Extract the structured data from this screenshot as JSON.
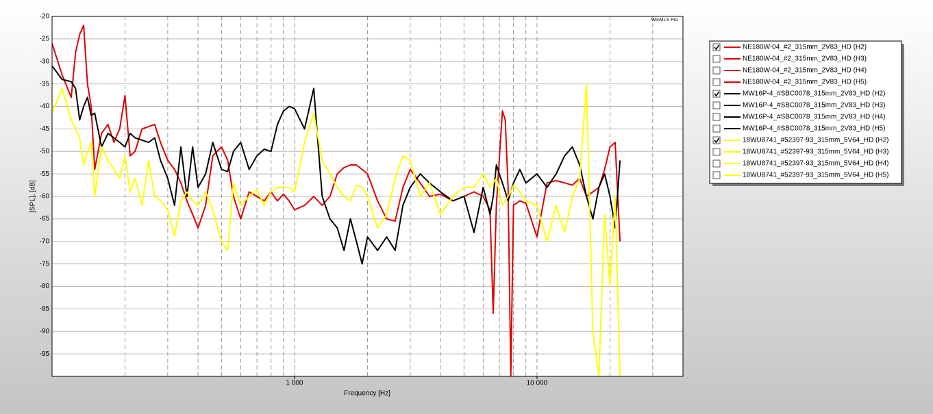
{
  "chart_data": {
    "type": "line",
    "watermark": "WinMLS Pro",
    "xlabel": "Frequency [Hz]",
    "ylabel": "[SPL], [dB]",
    "xlog": true,
    "grid": true,
    "xlim": [
      100,
      40000
    ],
    "ylim": [
      -100,
      -20
    ],
    "xticks": [
      {
        "value": 1000,
        "label": "1 000"
      },
      {
        "value": 10000,
        "label": "10 000"
      }
    ],
    "xminor": [
      200,
      300,
      400,
      500,
      600,
      700,
      800,
      900,
      2000,
      3000,
      4000,
      5000,
      6000,
      7000,
      8000,
      9000,
      20000,
      30000
    ],
    "yticks": [
      -95,
      -90,
      -85,
      -80,
      -75,
      -70,
      -65,
      -60,
      -55,
      -50,
      -45,
      -40,
      -35,
      -30,
      -25,
      -20
    ],
    "legend_position": "right",
    "x": [
      100,
      110,
      120,
      125,
      130,
      135,
      140,
      145,
      150,
      160,
      170,
      180,
      190,
      200,
      210,
      220,
      235,
      250,
      265,
      280,
      300,
      320,
      340,
      360,
      380,
      400,
      430,
      460,
      500,
      530,
      560,
      600,
      650,
      700,
      750,
      800,
      850,
      900,
      950,
      1000,
      1100,
      1200,
      1300,
      1400,
      1500,
      1600,
      1700,
      1800,
      1900,
      2000,
      2200,
      2400,
      2600,
      2800,
      3000,
      3300,
      3600,
      4000,
      4500,
      5000,
      5500,
      6000,
      6400,
      6600,
      6800,
      7200,
      7400,
      7600,
      7800,
      8000,
      8500,
      9000,
      10000,
      11000,
      12000,
      13000,
      14000,
      15000,
      16000,
      17000,
      18000,
      19000,
      20000,
      21000,
      22000
    ],
    "series": [
      {
        "name": "NE180W-04_#2_315mm_2V83_HD (H2)",
        "color": "#e00000",
        "checked": true,
        "values": [
          -26,
          -33,
          -38,
          -28,
          -24,
          -22,
          -35,
          -40,
          -54,
          -46,
          -44,
          -48,
          -45,
          -37.6,
          -51,
          -50,
          -45,
          -44.5,
          -44,
          -48,
          -52,
          -54,
          -57,
          -61,
          -64,
          -67,
          -62,
          -51,
          -49,
          -52,
          -60,
          -65,
          -59,
          -60,
          -61,
          -59,
          -61,
          -59.5,
          -61,
          -63,
          -62,
          -60,
          -62,
          -60,
          -55,
          -53.6,
          -53,
          -53,
          -54,
          -55,
          -61,
          -65,
          -65.5,
          -58,
          -54,
          -57,
          -60,
          -59.5,
          -61,
          -60,
          -59,
          -60,
          -63,
          -86,
          -62,
          -41,
          -43,
          -58,
          -100,
          -62,
          -61,
          -61.5,
          -69,
          -57,
          -56.5,
          -57,
          -57.5,
          -56,
          -60,
          -59,
          -58,
          -54,
          -49,
          -48,
          -70
        ]
      },
      {
        "name": "NE180W-04_#2_315mm_2V83_HD (H3)",
        "color": "#e00000",
        "checked": false
      },
      {
        "name": "NE180W-04_#2_315mm_2V83_HD (H4)",
        "color": "#e00000",
        "checked": false
      },
      {
        "name": "NE180W-04_#2_315mm_2V83_HD (H5)",
        "color": "#e00000",
        "checked": false
      },
      {
        "name": "MW16P-4_#SBC0078_315mm_2V83_HD (H2)",
        "color": "#000000",
        "checked": true,
        "values": [
          -31,
          -34,
          -34.5,
          -36,
          -43,
          -40,
          -38,
          -42,
          -41.5,
          -49,
          -46,
          -47,
          -48,
          -49,
          -46,
          -47,
          -47.5,
          -48,
          -47,
          -52,
          -56,
          -62,
          -49,
          -60,
          -49,
          -58,
          -55,
          -48,
          -54,
          -54.5,
          -50,
          -48,
          -54,
          -51,
          -49.5,
          -50,
          -44,
          -41,
          -40,
          -40.5,
          -45,
          -36,
          -60,
          -65,
          -67,
          -72,
          -65,
          -70,
          -75,
          -69,
          -72,
          -69,
          -72,
          -62,
          -58,
          -55,
          -57,
          -59,
          -61,
          -60,
          -68,
          -58,
          -64,
          -60,
          -53,
          -57,
          -59,
          -61,
          -59,
          -57,
          -54,
          -57,
          -55,
          -58,
          -55,
          -51,
          -49,
          -53,
          -60,
          -65,
          -58,
          -55,
          -60,
          -67,
          -52
        ]
      },
      {
        "name": "MW16P-4_#SBC0078_315mm_2V83_HD (H3)",
        "color": "#000000",
        "checked": false
      },
      {
        "name": "MW16P-4_#SBC0078_315mm_2V83_HD (H4)",
        "color": "#000000",
        "checked": false
      },
      {
        "name": "MW16P-4_#SBC0078_315mm_2V83_HD (H5)",
        "color": "#000000",
        "checked": false
      },
      {
        "name": "18WU8741_#52397-93_315mm_5V64_HD (H2)",
        "color": "#ffff00",
        "checked": true,
        "values": [
          -41.5,
          -36,
          -43,
          -45,
          -47,
          -53,
          -50,
          -48,
          -60,
          -49,
          -52,
          -54,
          -56,
          -51,
          -59,
          -56,
          -62,
          -52,
          -60,
          -61,
          -63,
          -68.8,
          -61,
          -59,
          -61,
          -62,
          -59,
          -63,
          -70,
          -72,
          -57,
          -62,
          -60,
          -58.5,
          -62,
          -59,
          -58,
          -58,
          -58,
          -59,
          -48,
          -41.5,
          -52,
          -55,
          -58,
          -60,
          -61,
          -57.5,
          -58,
          -60,
          -67,
          -64,
          -56,
          -51,
          -52,
          -60,
          -57,
          -64,
          -60,
          -58,
          -58,
          -55,
          -58,
          -57,
          -56,
          -62,
          -61,
          -60,
          -59,
          -57.5,
          -59,
          -61,
          -62,
          -70,
          -62,
          -68,
          -60,
          -56,
          -35,
          -90,
          -100,
          -64,
          -80,
          -60,
          -100
        ]
      },
      {
        "name": "18WU8741_#52397-93_315mm_5V64_HD (H3)",
        "color": "#ffff00",
        "checked": false
      },
      {
        "name": "18WU8741_#52397-93_315mm_5V64_HD (H4)",
        "color": "#ffff00",
        "checked": false
      },
      {
        "name": "18WU8741_#52397-93_315mm_5V64_HD (H5)",
        "color": "#ffff00",
        "checked": false
      }
    ]
  }
}
